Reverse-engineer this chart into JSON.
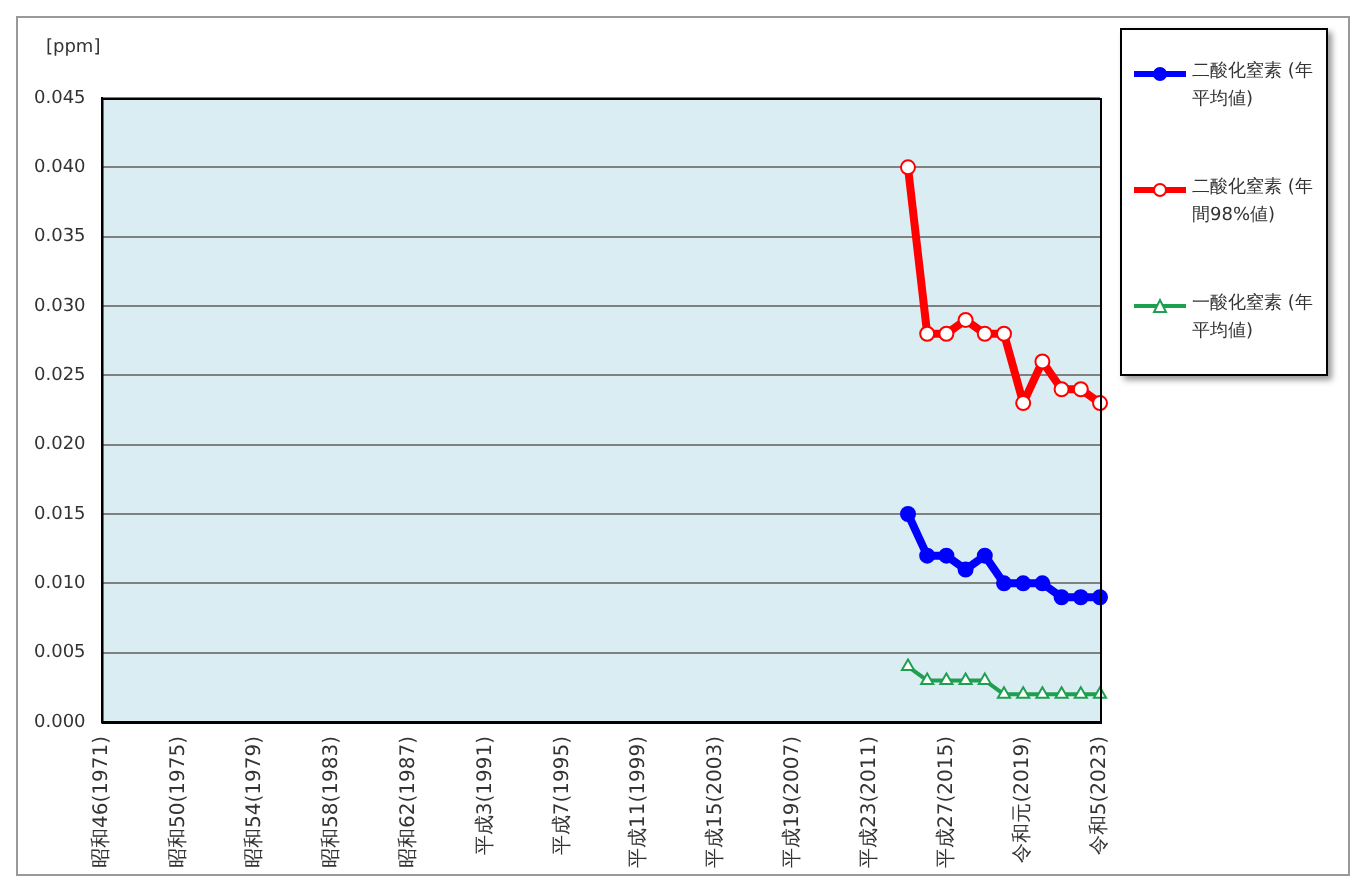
{
  "chart_data": {
    "type": "line",
    "ylabel": "[ppm]",
    "categories": [
      "昭和46(1971)",
      null,
      null,
      null,
      "昭和50(1975)",
      null,
      null,
      null,
      "昭和54(1979)",
      null,
      null,
      null,
      "昭和58(1983)",
      null,
      null,
      null,
      "昭和62(1987)",
      null,
      null,
      null,
      "平成3(1991)",
      null,
      null,
      null,
      "平成7(1995)",
      null,
      null,
      null,
      "平成11(1999)",
      null,
      null,
      null,
      "平成15(2003)",
      null,
      null,
      null,
      "平成19(2007)",
      null,
      null,
      null,
      "平成23(2011)",
      null,
      null,
      null,
      "平成27(2015)",
      null,
      null,
      null,
      "令和元(2019)",
      null,
      null,
      null,
      "令和5(2023)"
    ],
    "series": [
      {
        "name": "二酸化窒素 (年平均値)",
        "color": "#0000ff",
        "marker": "circle",
        "values": [
          null,
          null,
          null,
          null,
          null,
          null,
          null,
          null,
          null,
          null,
          null,
          null,
          null,
          null,
          null,
          null,
          null,
          null,
          null,
          null,
          null,
          null,
          null,
          null,
          null,
          null,
          null,
          null,
          null,
          null,
          null,
          null,
          null,
          null,
          null,
          null,
          null,
          null,
          null,
          null,
          null,
          null,
          0.015,
          0.012,
          0.012,
          0.011,
          0.012,
          0.01,
          0.01,
          0.01,
          0.009,
          0.009,
          0.009
        ]
      },
      {
        "name": "二酸化窒素 (年間98%値)",
        "color": "#ff0000",
        "marker": "circle",
        "values": [
          null,
          null,
          null,
          null,
          null,
          null,
          null,
          null,
          null,
          null,
          null,
          null,
          null,
          null,
          null,
          null,
          null,
          null,
          null,
          null,
          null,
          null,
          null,
          null,
          null,
          null,
          null,
          null,
          null,
          null,
          null,
          null,
          null,
          null,
          null,
          null,
          null,
          null,
          null,
          null,
          null,
          null,
          0.04,
          0.028,
          0.028,
          0.029,
          0.028,
          0.028,
          0.023,
          0.026,
          0.024,
          0.024,
          0.023
        ]
      },
      {
        "name": "一酸化窒素 (年平均値)",
        "color": "#1fa050",
        "marker": "triangle",
        "values": [
          null,
          null,
          null,
          null,
          null,
          null,
          null,
          null,
          null,
          null,
          null,
          null,
          null,
          null,
          null,
          null,
          null,
          null,
          null,
          null,
          null,
          null,
          null,
          null,
          null,
          null,
          null,
          null,
          null,
          null,
          null,
          null,
          null,
          null,
          null,
          null,
          null,
          null,
          null,
          null,
          null,
          null,
          0.004,
          0.003,
          0.003,
          0.003,
          0.003,
          0.002,
          0.002,
          0.002,
          0.002,
          0.002,
          0.002
        ]
      }
    ],
    "ylim": [
      0,
      0.045
    ],
    "yticks": [
      {
        "value": 0,
        "label": "0.000"
      },
      {
        "value": 0.005,
        "label": "0.005"
      },
      {
        "value": 0.01,
        "label": "0.010"
      },
      {
        "value": 0.015,
        "label": "0.015"
      },
      {
        "value": 0.02,
        "label": "0.020"
      },
      {
        "value": 0.025,
        "label": "0.025"
      },
      {
        "value": 0.03,
        "label": "0.030"
      },
      {
        "value": 0.035,
        "label": "0.035"
      },
      {
        "value": 0.04,
        "label": "0.040"
      },
      {
        "value": 0.045,
        "label": "0.045"
      }
    ],
    "grid": "y",
    "legend": "top right"
  }
}
